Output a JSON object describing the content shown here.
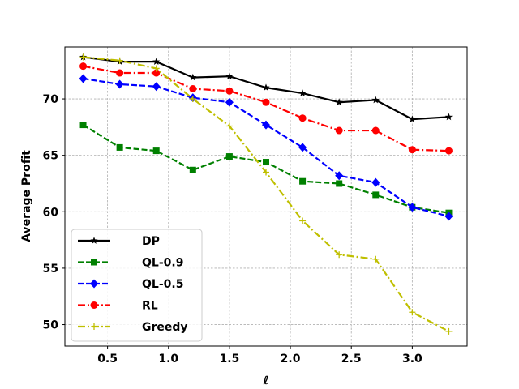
{
  "chart_data": {
    "type": "line",
    "title": "",
    "xlabel": "ℓ",
    "ylabel": "Average Profit",
    "xlim": [
      0.15,
      3.45
    ],
    "ylim": [
      48.1,
      74.6
    ],
    "xticks": [
      0.5,
      1.0,
      1.5,
      2.0,
      2.5,
      3.0
    ],
    "xtick_labels": [
      "0.5",
      "1.0",
      "1.5",
      "2.0",
      "2.5",
      "3.0"
    ],
    "yticks": [
      50,
      55,
      60,
      65,
      70
    ],
    "ytick_labels": [
      "50",
      "55",
      "60",
      "65",
      "70"
    ],
    "grid": true,
    "legend_position": "lower-left",
    "x": [
      0.3,
      0.6,
      0.9,
      1.2,
      1.5,
      1.8,
      2.1,
      2.4,
      2.7,
      3.0,
      3.3
    ],
    "series": [
      {
        "name": "DP",
        "color": "#000000",
        "dash": "solid",
        "marker": "star",
        "values": [
          73.7,
          73.3,
          73.3,
          71.9,
          72.0,
          71.0,
          70.5,
          69.7,
          69.9,
          68.2,
          68.4
        ]
      },
      {
        "name": "QL-0.9",
        "color": "#008000",
        "dash": "dashed",
        "marker": "square",
        "values": [
          67.7,
          65.7,
          65.4,
          63.7,
          64.9,
          64.4,
          62.7,
          62.5,
          61.5,
          60.4,
          59.9
        ]
      },
      {
        "name": "QL-0.5",
        "color": "#0000ff",
        "dash": "dashed",
        "marker": "diamond",
        "values": [
          71.8,
          71.3,
          71.1,
          70.1,
          69.7,
          67.7,
          65.7,
          63.2,
          62.6,
          60.4,
          59.6
        ]
      },
      {
        "name": "RL",
        "color": "#ff0000",
        "dash": "dashdot",
        "marker": "circle",
        "values": [
          72.9,
          72.3,
          72.3,
          70.9,
          70.7,
          69.7,
          68.3,
          67.2,
          67.2,
          65.5,
          65.4
        ]
      },
      {
        "name": "Greedy",
        "color": "#bfbf00",
        "dash": "dashdot",
        "marker": "plus",
        "values": [
          73.7,
          73.4,
          72.7,
          70.0,
          67.6,
          63.5,
          59.2,
          56.2,
          55.8,
          51.1,
          49.4
        ]
      }
    ]
  }
}
